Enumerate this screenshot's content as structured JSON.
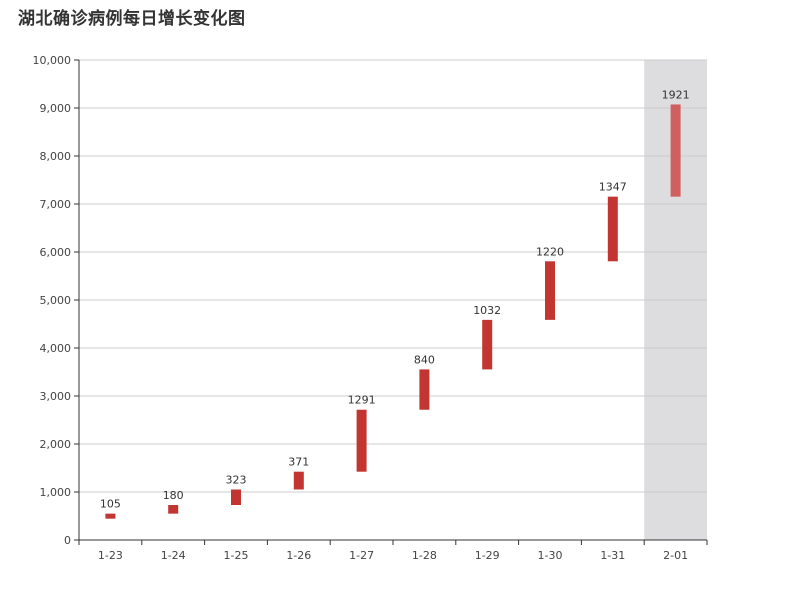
{
  "page": {
    "title": "湖北确诊病例每日增长变化图"
  },
  "chart_data": {
    "type": "bar",
    "subtype": "waterfall",
    "title": "湖北确诊病例每日增长变化图",
    "xlabel": "",
    "ylabel": "",
    "categories": [
      "1-23",
      "1-24",
      "1-25",
      "1-26",
      "1-27",
      "1-28",
      "1-29",
      "1-30",
      "1-31",
      "2-01"
    ],
    "bases": [
      444,
      549,
      729,
      1052,
      1423,
      2714,
      3554,
      4586,
      5806,
      7153
    ],
    "values": [
      105,
      180,
      323,
      371,
      1291,
      840,
      1032,
      1220,
      1347,
      1921
    ],
    "ylim": [
      0,
      10000
    ],
    "yticks": [
      0,
      1000,
      2000,
      3000,
      4000,
      5000,
      6000,
      7000,
      8000,
      9000,
      10000
    ],
    "ytick_labels": [
      "0",
      "1,000",
      "2,000",
      "3,000",
      "4,000",
      "5,000",
      "6,000",
      "7,000",
      "8,000",
      "9,000",
      "10,000"
    ],
    "grid": true,
    "highlighted_category": "2-01",
    "colors": {
      "bar": "#c23531",
      "bar_highlighted": "#d06060",
      "highlight_band": "#dddcdf",
      "grid": "#cccccc",
      "axis": "#333333"
    }
  }
}
